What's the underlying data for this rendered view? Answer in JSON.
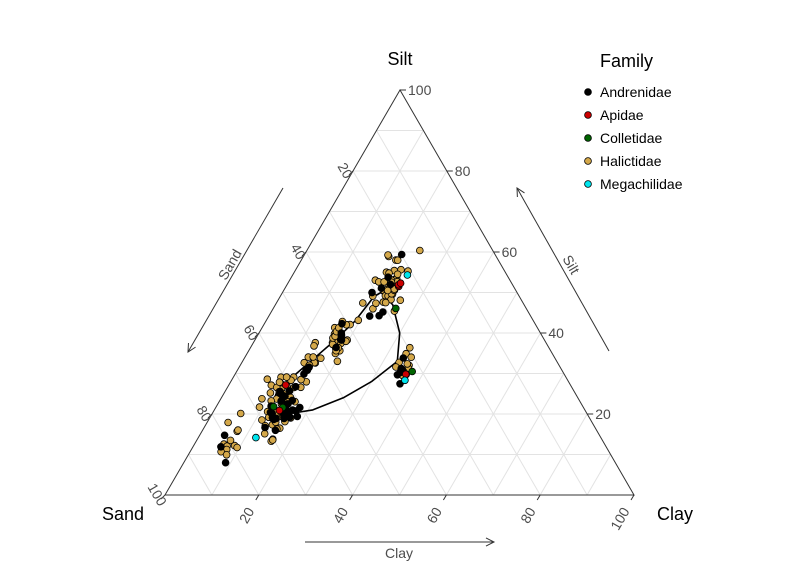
{
  "chart_data": {
    "type": "scatter",
    "subtype": "ternary",
    "corner_labels": {
      "top": "Silt",
      "left": "Sand",
      "right": "Clay"
    },
    "axis_titles": {
      "left": "Sand",
      "right": "Silt",
      "bottom": "Clay"
    },
    "ticks": [
      20,
      40,
      60,
      80,
      100
    ],
    "grid": true,
    "legend": {
      "title": "Family",
      "placement": "top-right",
      "entries": [
        {
          "name": "Andrenidae",
          "color": "#000000"
        },
        {
          "name": "Apidae",
          "color": "#cc0000"
        },
        {
          "name": "Colletidae",
          "color": "#006400"
        },
        {
          "name": "Halictidae",
          "color": "#d4a84a"
        },
        {
          "name": "Megachilidae",
          "color": "#00e5ee"
        }
      ]
    },
    "clusters": [
      {
        "family": "Halictidae",
        "center": {
          "sand": 80,
          "silt": 13,
          "clay": 7
        },
        "spread": 3,
        "count": 12
      },
      {
        "family": "Andrenidae",
        "center": {
          "sand": 80,
          "silt": 13,
          "clay": 7
        },
        "spread": 2.5,
        "count": 3
      },
      {
        "family": "Megachilidae",
        "center": {
          "sand": 73,
          "silt": 15,
          "clay": 12
        },
        "spread": 0.5,
        "count": 1
      },
      {
        "family": "Halictidae",
        "center": {
          "sand": 65,
          "silt": 22,
          "clay": 13
        },
        "spread": 3.5,
        "count": 55
      },
      {
        "family": "Andrenidae",
        "center": {
          "sand": 64,
          "silt": 22,
          "clay": 14
        },
        "spread": 3,
        "count": 30
      },
      {
        "family": "Colletidae",
        "center": {
          "sand": 64,
          "silt": 23,
          "clay": 13
        },
        "spread": 1.5,
        "count": 2
      },
      {
        "family": "Apidae",
        "center": {
          "sand": 63,
          "silt": 24,
          "clay": 13
        },
        "spread": 2,
        "count": 2
      },
      {
        "family": "Halictidae",
        "center": {
          "sand": 53,
          "silt": 32,
          "clay": 15
        },
        "spread": 2,
        "count": 12
      },
      {
        "family": "Andrenidae",
        "center": {
          "sand": 53,
          "silt": 32,
          "clay": 15
        },
        "spread": 2,
        "count": 4
      },
      {
        "family": "Halictidae",
        "center": {
          "sand": 43,
          "silt": 39,
          "clay": 18
        },
        "spread": 2.5,
        "count": 25
      },
      {
        "family": "Andrenidae",
        "center": {
          "sand": 43,
          "silt": 39,
          "clay": 18
        },
        "spread": 2,
        "count": 6
      },
      {
        "family": "Halictidae",
        "center": {
          "sand": 34,
          "silt": 31,
          "clay": 35
        },
        "spread": 2,
        "count": 10
      },
      {
        "family": "Andrenidae",
        "center": {
          "sand": 34,
          "silt": 31,
          "clay": 35
        },
        "spread": 1.5,
        "count": 6
      },
      {
        "family": "Apidae",
        "center": {
          "sand": 34,
          "silt": 29,
          "clay": 37
        },
        "spread": 1.5,
        "count": 2
      },
      {
        "family": "Colletidae",
        "center": {
          "sand": 32,
          "silt": 30,
          "clay": 38
        },
        "spread": 1,
        "count": 1
      },
      {
        "family": "Megachilidae",
        "center": {
          "sand": 33,
          "silt": 30,
          "clay": 37
        },
        "spread": 1,
        "count": 1
      },
      {
        "family": "Halictidae",
        "center": {
          "sand": 26,
          "silt": 52,
          "clay": 22
        },
        "spread": 3,
        "count": 45
      },
      {
        "family": "Andrenidae",
        "center": {
          "sand": 26,
          "silt": 52,
          "clay": 22
        },
        "spread": 3,
        "count": 8
      },
      {
        "family": "Apidae",
        "center": {
          "sand": 24,
          "silt": 53,
          "clay": 23
        },
        "spread": 2,
        "count": 3
      },
      {
        "family": "Colletidae",
        "center": {
          "sand": 28,
          "silt": 46,
          "clay": 26
        },
        "spread": 1,
        "count": 1
      },
      {
        "family": "Megachilidae",
        "center": {
          "sand": 22,
          "silt": 54,
          "clay": 24
        },
        "spread": 1,
        "count": 1
      }
    ],
    "contour": [
      {
        "sand": 68,
        "silt": 20,
        "clay": 12
      },
      {
        "sand": 63,
        "silt": 26,
        "clay": 11
      },
      {
        "sand": 57,
        "silt": 30,
        "clay": 13
      },
      {
        "sand": 51,
        "silt": 34,
        "clay": 15
      },
      {
        "sand": 45,
        "silt": 38,
        "clay": 17
      },
      {
        "sand": 38,
        "silt": 43,
        "clay": 19
      },
      {
        "sand": 31,
        "silt": 49,
        "clay": 20
      },
      {
        "sand": 29,
        "silt": 50,
        "clay": 21
      },
      {
        "sand": 28,
        "silt": 47,
        "clay": 25
      },
      {
        "sand": 30,
        "silt": 40,
        "clay": 30
      },
      {
        "sand": 34,
        "silt": 33,
        "clay": 33
      },
      {
        "sand": 42,
        "silt": 28,
        "clay": 30
      },
      {
        "sand": 50,
        "silt": 24,
        "clay": 26
      },
      {
        "sand": 58,
        "silt": 21,
        "clay": 21
      },
      {
        "sand": 64,
        "silt": 20,
        "clay": 16
      },
      {
        "sand": 68,
        "silt": 20,
        "clay": 12
      }
    ]
  }
}
